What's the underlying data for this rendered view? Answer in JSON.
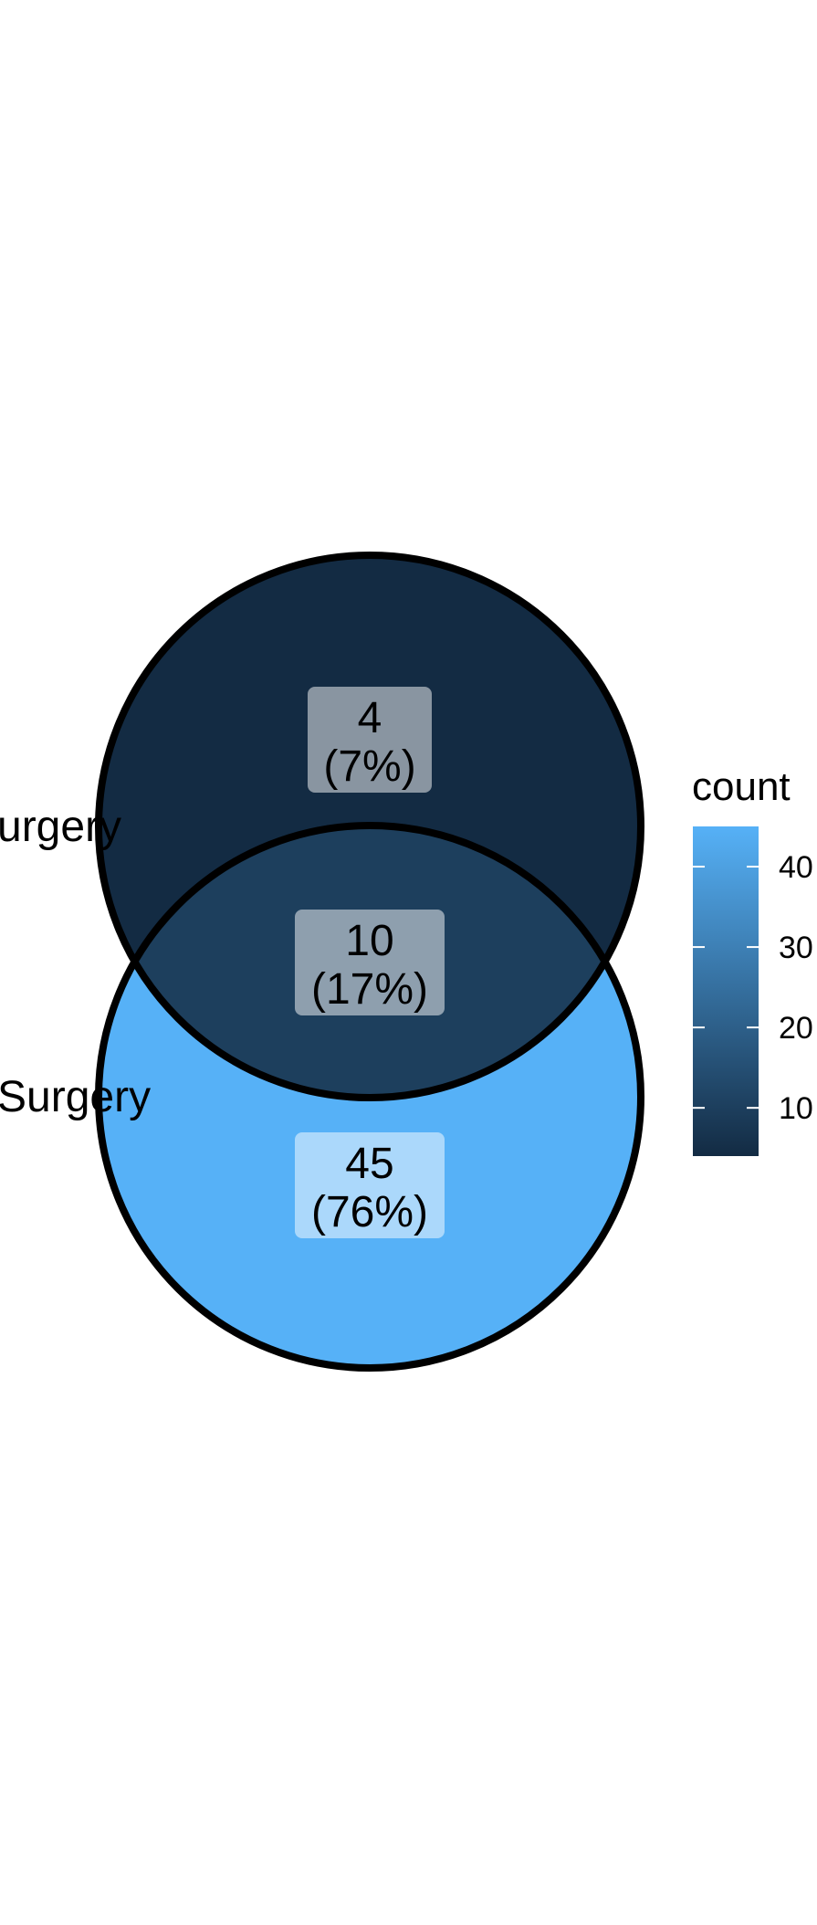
{
  "chart_data": {
    "type": "venn",
    "sets": [
      {
        "name": "urgery"
      },
      {
        "name": "Surgery"
      }
    ],
    "regions": [
      {
        "region": "set1-only",
        "count": 4,
        "percent_label": "(7%)"
      },
      {
        "region": "both",
        "count": 10,
        "percent_label": "(17%)"
      },
      {
        "region": "set2-only",
        "count": 45,
        "percent_label": "(76%)"
      }
    ],
    "legend": {
      "title": "count",
      "range": [
        4,
        45
      ],
      "ticks": [
        10,
        20,
        30,
        40
      ],
      "low_color": "#132B43",
      "high_color": "#56B1F7",
      "placement": "right"
    },
    "colors": {
      "outline": "#000000",
      "label_box": "#ffffff"
    }
  }
}
